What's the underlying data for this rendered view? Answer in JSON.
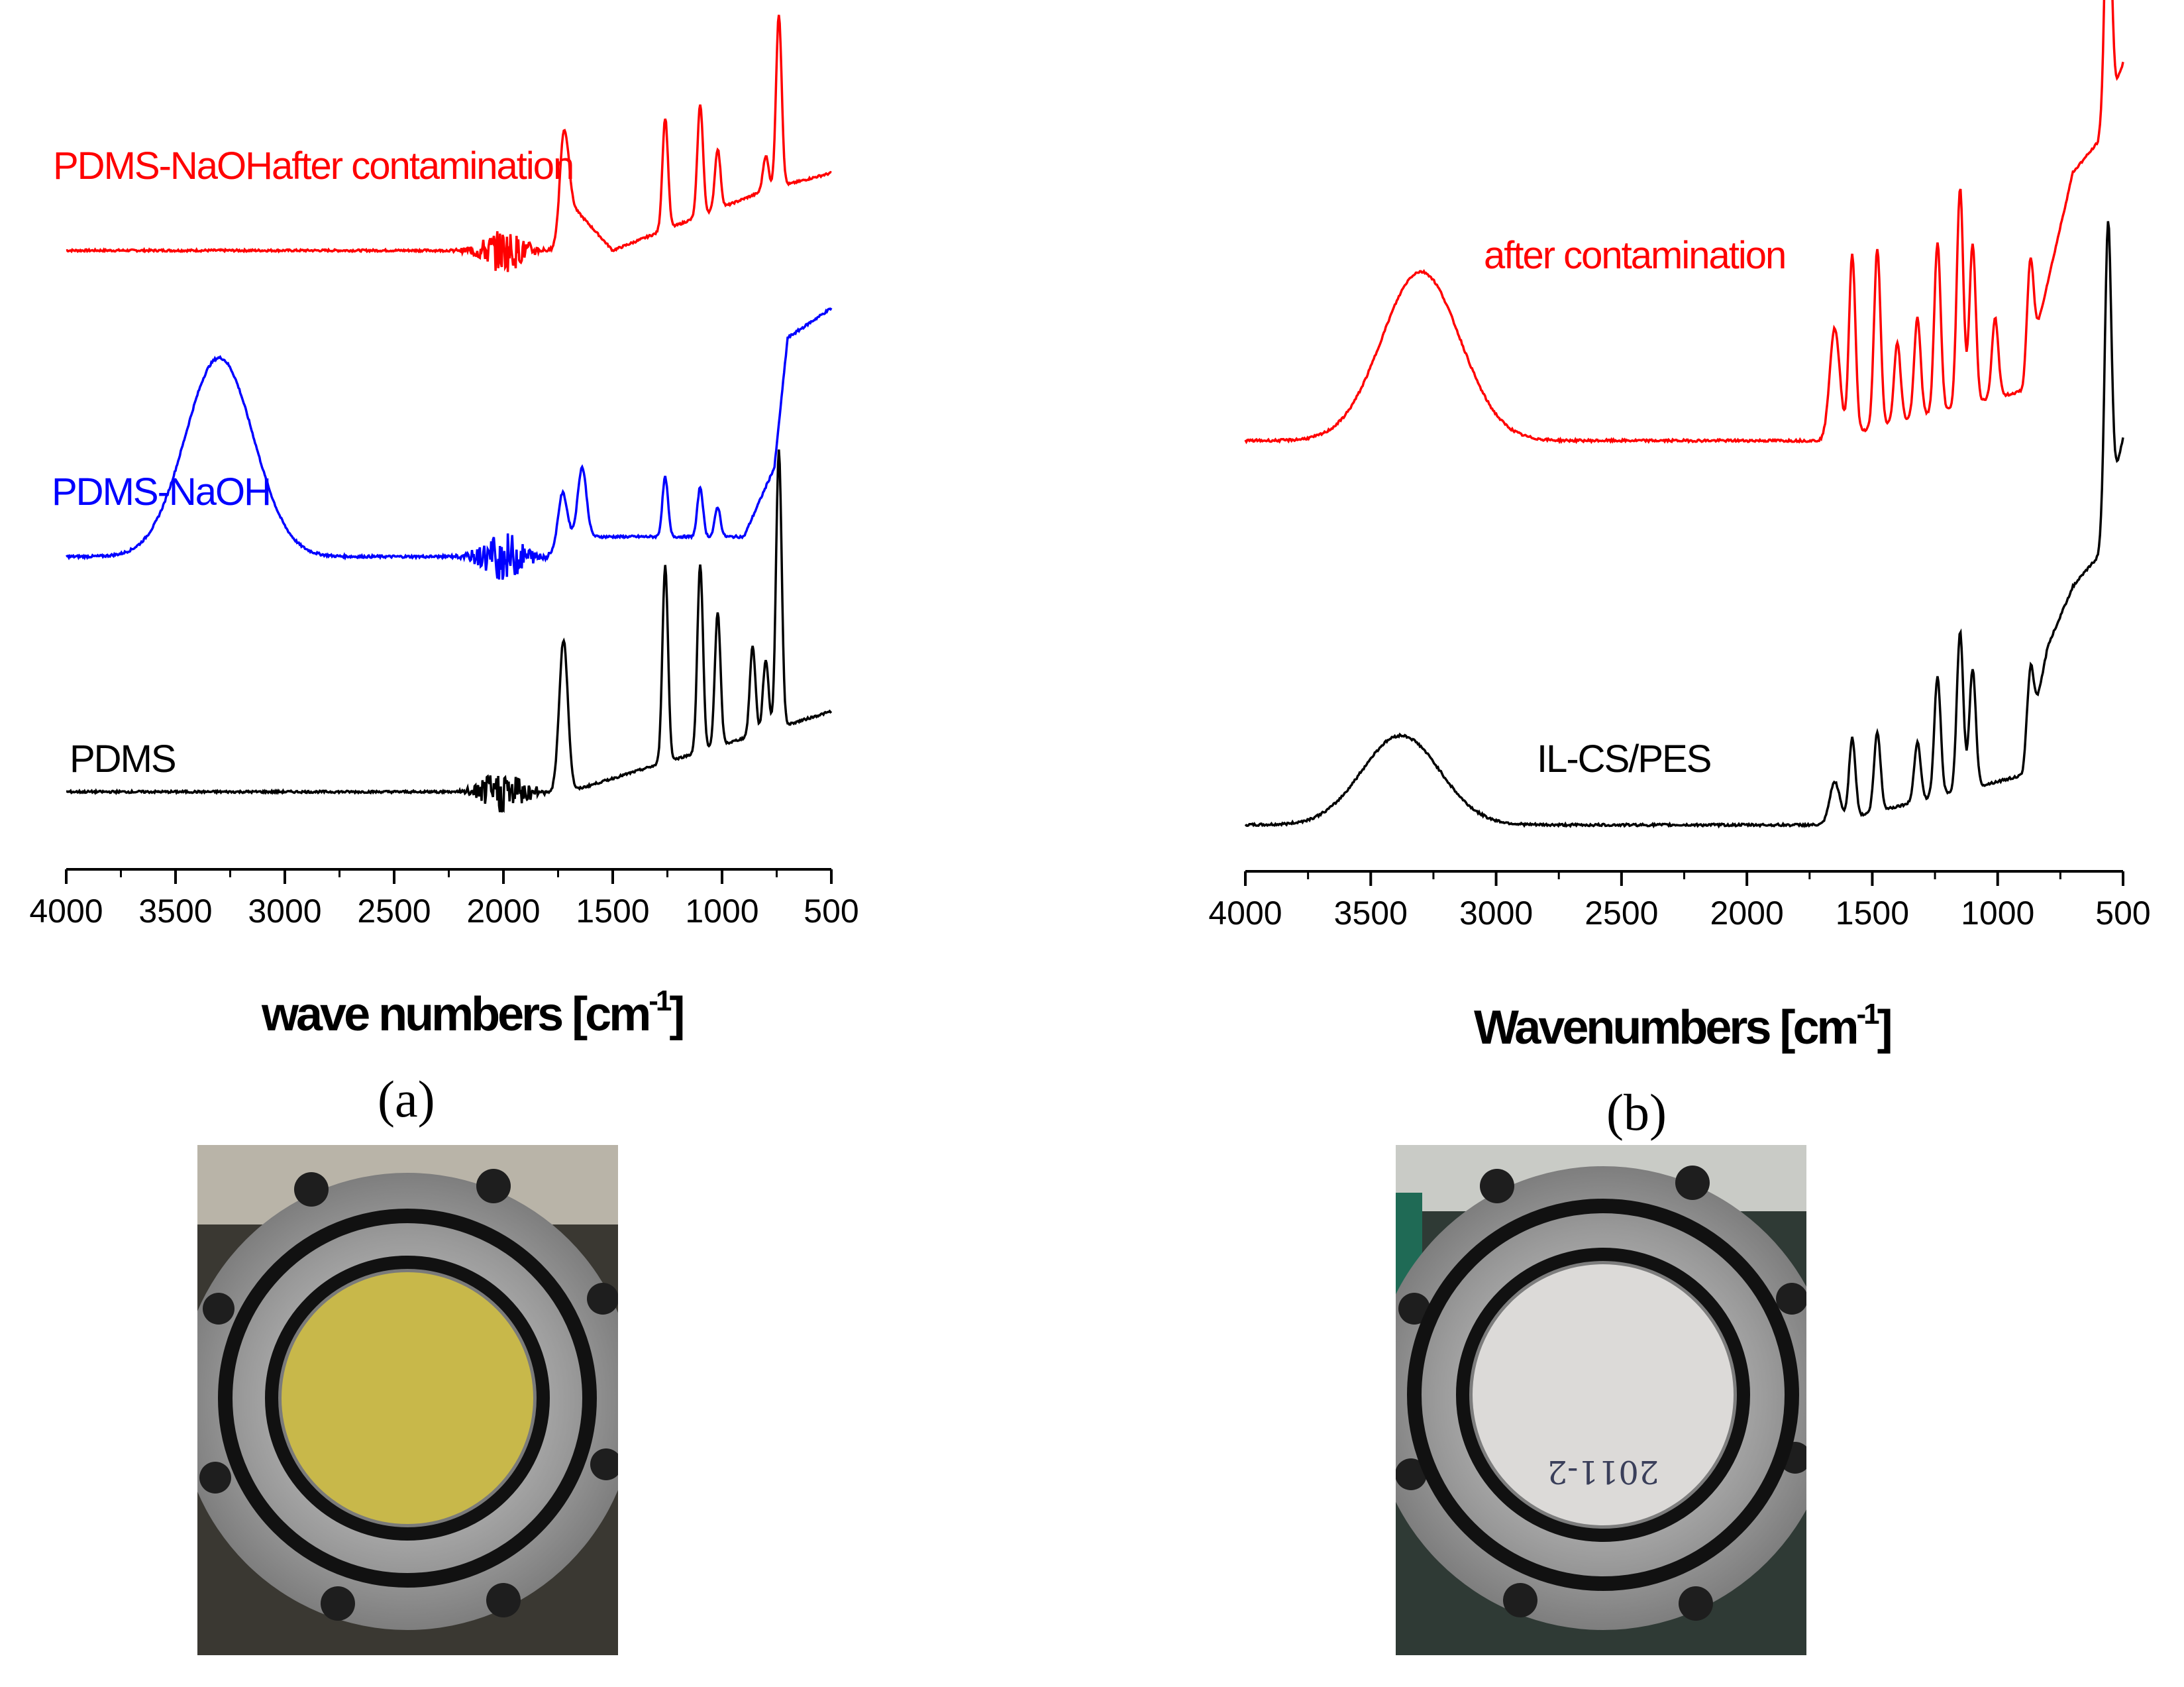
{
  "chart_data": [
    {
      "type": "line",
      "panel_label": "(a)",
      "xlabel": "wave numbers [cm",
      "xlabel_sup": "-1",
      "xlabel_close": "]",
      "xlim": [
        4000,
        500
      ],
      "reversed_x": true,
      "xticks": [
        4000,
        3500,
        3000,
        2500,
        2000,
        1500,
        1000,
        500
      ],
      "grid": false,
      "series": [
        {
          "name": "PDMS-NaOHafter contamination",
          "color": "#ff0000",
          "peaks": [
            [
              1725,
              0.55
            ],
            [
              1260,
              0.65
            ],
            [
              1100,
              0.65
            ],
            [
              1020,
              0.35
            ],
            [
              800,
              0.2
            ],
            [
              740,
              1.0
            ]
          ],
          "baseline": [
            [
              4000,
              0
            ],
            [
              1750,
              0
            ],
            [
              1700,
              0.28
            ],
            [
              1500,
              0.0
            ],
            [
              1300,
              0.1
            ],
            [
              800,
              0.35
            ],
            [
              500,
              0.45
            ]
          ]
        },
        {
          "name": "PDMS-NaOH",
          "color": "#0000ff",
          "peaks": [
            [
              3300,
              1.0
            ],
            [
              1730,
              0.25
            ],
            [
              1640,
              0.35
            ],
            [
              1260,
              0.3
            ],
            [
              1100,
              0.25
            ],
            [
              1020,
              0.15
            ]
          ],
          "baseline": [
            [
              4000,
              0
            ],
            [
              1800,
              0
            ],
            [
              1700,
              0.1
            ],
            [
              900,
              0.1
            ],
            [
              760,
              0.45
            ],
            [
              700,
              1.1
            ],
            [
              500,
              1.25
            ]
          ]
        },
        {
          "name": "PDMS",
          "color": "#000000",
          "peaks": [
            [
              1725,
              0.85
            ],
            [
              1260,
              1.1
            ],
            [
              1100,
              1.05
            ],
            [
              1020,
              0.75
            ],
            [
              860,
              0.5
            ],
            [
              800,
              0.4
            ],
            [
              740,
              1.55
            ]
          ],
          "baseline": [
            [
              4000,
              0
            ],
            [
              1750,
              0
            ],
            [
              1700,
              0.0
            ],
            [
              500,
              0.45
            ]
          ]
        }
      ]
    },
    {
      "type": "line",
      "panel_label": "(b)",
      "xlabel": "Wavenumbers [cm",
      "xlabel_sup": "-1",
      "xlabel_close": "]",
      "xlim": [
        4000,
        500
      ],
      "reversed_x": true,
      "xticks": [
        4000,
        3500,
        3000,
        2500,
        2000,
        1500,
        1000,
        500
      ],
      "grid": false,
      "series": [
        {
          "name": "after contamination",
          "color": "#ff0000",
          "peaks": [
            [
              3300,
              0.85
            ],
            [
              1650,
              0.55
            ],
            [
              1580,
              0.9
            ],
            [
              1480,
              0.9
            ],
            [
              1400,
              0.4
            ],
            [
              1320,
              0.5
            ],
            [
              1240,
              0.85
            ],
            [
              1150,
              1.1
            ],
            [
              1100,
              0.8
            ],
            [
              1010,
              0.4
            ],
            [
              870,
              0.5
            ],
            [
              560,
              1.3
            ]
          ],
          "baseline": [
            [
              4000,
              0
            ],
            [
              1700,
              0
            ],
            [
              900,
              0.25
            ],
            [
              800,
              0.8
            ],
            [
              700,
              1.35
            ],
            [
              600,
              1.5
            ],
            [
              500,
              1.9
            ]
          ]
        },
        {
          "name": "IL-CS/PES",
          "color": "#000000",
          "peaks": [
            [
              3380,
              0.45
            ],
            [
              1650,
              0.2
            ],
            [
              1580,
              0.4
            ],
            [
              1480,
              0.4
            ],
            [
              1320,
              0.3
            ],
            [
              1240,
              0.6
            ],
            [
              1150,
              0.8
            ],
            [
              1100,
              0.6
            ],
            [
              870,
              0.35
            ],
            [
              560,
              1.45
            ]
          ],
          "baseline": [
            [
              4000,
              0
            ],
            [
              1700,
              0
            ],
            [
              900,
              0.25
            ],
            [
              800,
              0.9
            ],
            [
              700,
              1.2
            ],
            [
              600,
              1.35
            ],
            [
              500,
              1.95
            ]
          ]
        }
      ]
    }
  ],
  "photos": [
    {
      "name": "photo-pdms-membrane",
      "membrane_color": "#c8b84a"
    },
    {
      "name": "photo-il-cs-pes-membrane",
      "membrane_color": "#dcdad8",
      "handwriting": "2011-2"
    }
  ]
}
